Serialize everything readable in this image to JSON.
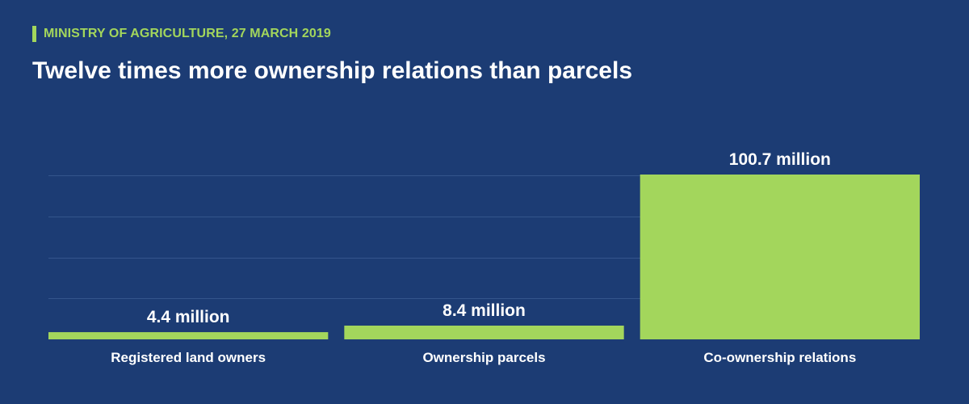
{
  "header": {
    "source": "MINISTRY OF AGRICULTURE, 27 MARCH 2019",
    "title": "Twelve times more ownership relations than parcels"
  },
  "colors": {
    "background": "#1c3c74",
    "accent": "#a3d65c",
    "gridline": "#34558c",
    "text": "#ffffff"
  },
  "chart_data": {
    "type": "bar",
    "title": "Twelve times more ownership relations than parcels",
    "categories": [
      "Registered land owners",
      "Ownership parcels",
      "Co-ownership relations"
    ],
    "values": [
      4.4,
      8.4,
      100.7
    ],
    "value_labels": [
      "4.4 million",
      "8.4 million",
      "100.7 million"
    ],
    "unit": "million",
    "xlabel": "",
    "ylabel": "",
    "ylim": [
      0,
      100.7
    ],
    "gridlines": [
      25,
      50,
      75,
      100
    ],
    "grid": true,
    "legend": "none"
  }
}
